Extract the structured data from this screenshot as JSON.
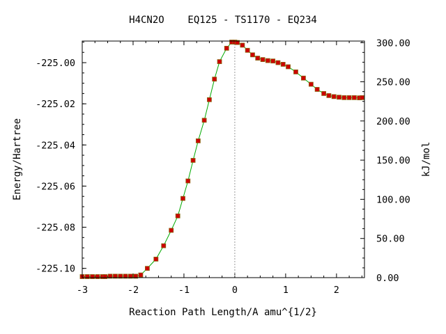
{
  "chart_data": {
    "type": "line",
    "title": "H4CN2O    EQ125 - TS1170 - EQ234",
    "xlabel": "Reaction Path Length/A amu^{1/2}",
    "ylabel": "Energy/Hartree",
    "y2label": "kJ/mol",
    "xlim": [
      -3.0,
      2.55
    ],
    "ylim": [
      -225.1045,
      -224.9895
    ],
    "y2lim": [
      0,
      302
    ],
    "x_ticks": [
      -3,
      -2,
      -1,
      0,
      1,
      2
    ],
    "x_tick_labels": [
      "-3",
      "-2",
      "-1",
      "0",
      "1",
      "2"
    ],
    "y_ticks": [
      -225.1,
      -225.08,
      -225.06,
      -225.04,
      -225.02,
      -225.0
    ],
    "y_tick_labels": [
      "-225.10",
      "-225.08",
      "-225.06",
      "-225.04",
      "-225.02",
      "-225.00"
    ],
    "y2_ticks": [
      0,
      50,
      100,
      150,
      200,
      250,
      300
    ],
    "y2_tick_labels": [
      "0.00",
      "50.00",
      "100.00",
      "150.00",
      "200.00",
      "250.00",
      "300.00"
    ],
    "ts_marker_x": 0.0,
    "colors": {
      "line": "#00aa00",
      "marker": "#cc0000",
      "marker_edge": "#8b6914",
      "ts_line": "#999999",
      "axis": "#000000"
    },
    "series": [
      {
        "x": [
          -3.0,
          -2.9,
          -2.8,
          -2.7,
          -2.6,
          -2.55,
          -2.45,
          -2.35,
          -2.25,
          -2.15,
          -2.05,
          -1.95,
          -1.85,
          -1.72,
          -1.55,
          -1.4,
          -1.25,
          -1.12,
          -1.02,
          -0.92,
          -0.82,
          -0.72,
          -0.6,
          -0.5,
          -0.4,
          -0.3,
          -0.16,
          -0.06,
          0.0,
          0.05,
          0.15,
          0.25,
          0.35,
          0.45,
          0.55,
          0.65,
          0.75,
          0.85,
          0.95,
          1.05,
          1.2,
          1.35,
          1.5,
          1.62,
          1.75,
          1.85,
          1.95,
          2.05,
          2.15,
          2.25,
          2.35,
          2.45,
          2.5
        ],
        "y": [
          -225.104,
          -225.104,
          -225.104,
          -225.104,
          -225.104,
          -225.104,
          -225.1038,
          -225.1038,
          -225.1038,
          -225.1038,
          -225.1038,
          -225.1038,
          -225.1032,
          -225.1,
          -225.0955,
          -225.089,
          -225.0815,
          -225.0745,
          -225.066,
          -225.0575,
          -225.0475,
          -225.038,
          -225.028,
          -225.018,
          -225.008,
          -224.9995,
          -224.993,
          -224.99,
          -224.99,
          -224.9902,
          -224.9915,
          -224.994,
          -224.9962,
          -224.9978,
          -224.9985,
          -224.999,
          -224.9992,
          -225.0,
          -225.0008,
          -225.002,
          -225.0045,
          -225.0075,
          -225.0105,
          -225.013,
          -225.015,
          -225.016,
          -225.0165,
          -225.0168,
          -225.017,
          -225.017,
          -225.017,
          -225.0171,
          -225.017
        ]
      }
    ]
  }
}
